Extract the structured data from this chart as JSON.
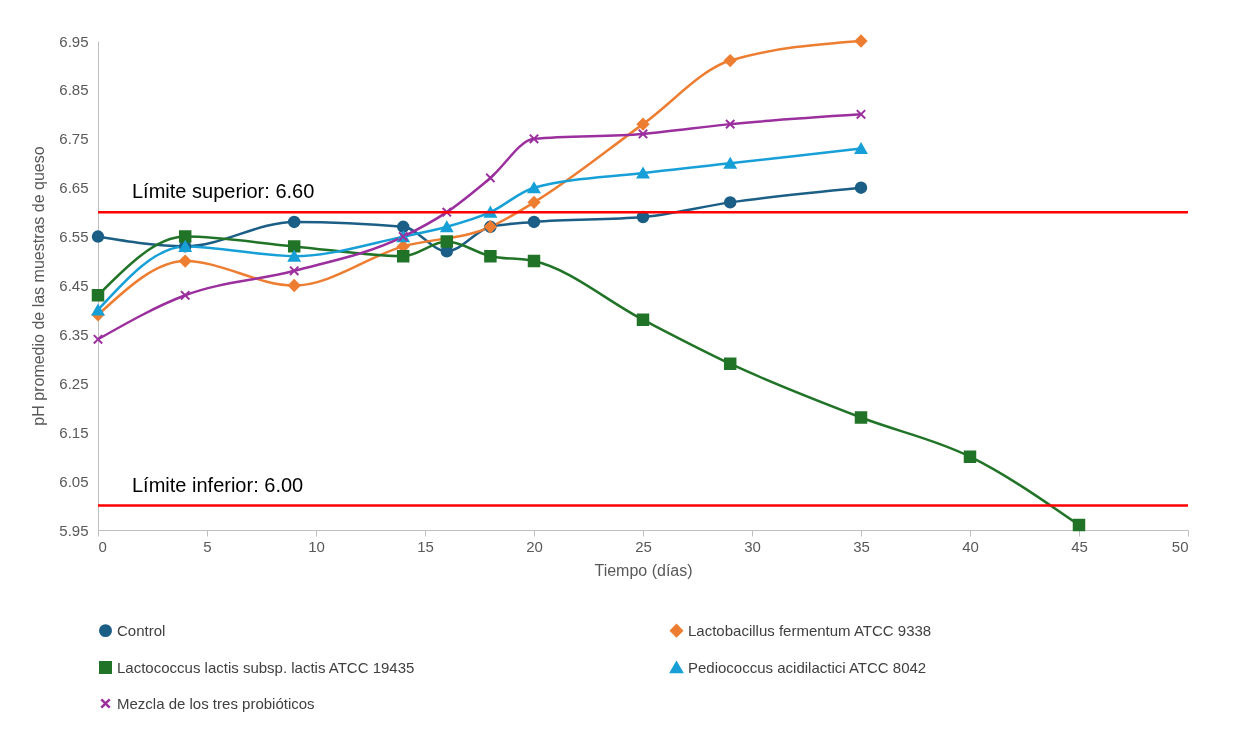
{
  "chart_data": {
    "type": "line",
    "xlabel": "Tiempo (días)",
    "ylabel": "pH promedio de las muestras de queso",
    "xlim": [
      0,
      50
    ],
    "xticks": [
      0,
      5,
      10,
      15,
      20,
      25,
      30,
      35,
      40,
      45,
      50
    ],
    "ylim": [
      5.95,
      6.95
    ],
    "yticks": [
      5.95,
      6.05,
      6.15,
      6.25,
      6.35,
      6.45,
      6.55,
      6.65,
      6.75,
      6.85,
      6.95
    ],
    "legend": "bottom",
    "series": [
      {
        "name": "Control",
        "color": "#1b5e86",
        "marker": "circle",
        "x": [
          0,
          4,
          9,
          14,
          16,
          18,
          20,
          25,
          29,
          35
        ],
        "values": [
          6.55,
          6.53,
          6.58,
          6.57,
          6.52,
          6.57,
          6.58,
          6.59,
          6.62,
          6.65
        ]
      },
      {
        "name": "Lactobacillus fermentum ATCC 9338",
        "color": "#ed7d31",
        "marker": "diamond",
        "x": [
          0,
          4,
          9,
          14,
          18,
          20,
          25,
          29,
          35
        ],
        "values": [
          6.39,
          6.5,
          6.45,
          6.53,
          6.57,
          6.62,
          6.78,
          6.91,
          6.95
        ]
      },
      {
        "name": "Lactococcus lactis subsp. lactis ATCC 19435",
        "color": "#217427",
        "marker": "square",
        "x": [
          0,
          4,
          9,
          14,
          16,
          18,
          20,
          25,
          29,
          35,
          40,
          45
        ],
        "values": [
          6.43,
          6.55,
          6.53,
          6.51,
          6.54,
          6.51,
          6.5,
          6.38,
          6.29,
          6.18,
          6.1,
          5.96
        ]
      },
      {
        "name": "Pediococcus acidilactici ATCC 8042",
        "color": "#17a0d7",
        "marker": "triangle",
        "x": [
          0,
          4,
          9,
          14,
          16,
          18,
          20,
          25,
          29,
          35
        ],
        "values": [
          6.4,
          6.53,
          6.51,
          6.55,
          6.57,
          6.6,
          6.65,
          6.68,
          6.7,
          6.73
        ]
      },
      {
        "name": "Mezcla de los tres probióticos",
        "color": "#9b2f9e",
        "marker": "cross",
        "x": [
          0,
          4,
          9,
          14,
          16,
          18,
          20,
          25,
          29,
          35
        ],
        "values": [
          6.34,
          6.43,
          6.48,
          6.55,
          6.6,
          6.67,
          6.75,
          6.76,
          6.78,
          6.8
        ]
      }
    ],
    "ref_lines": [
      {
        "axis": "y",
        "value": 6.6,
        "label": "Límite superior: 6.60",
        "color": "#ff0000"
      },
      {
        "axis": "y",
        "value": 6.0,
        "label": "Límite inferior: 6.00",
        "color": "#ff0000"
      }
    ]
  }
}
